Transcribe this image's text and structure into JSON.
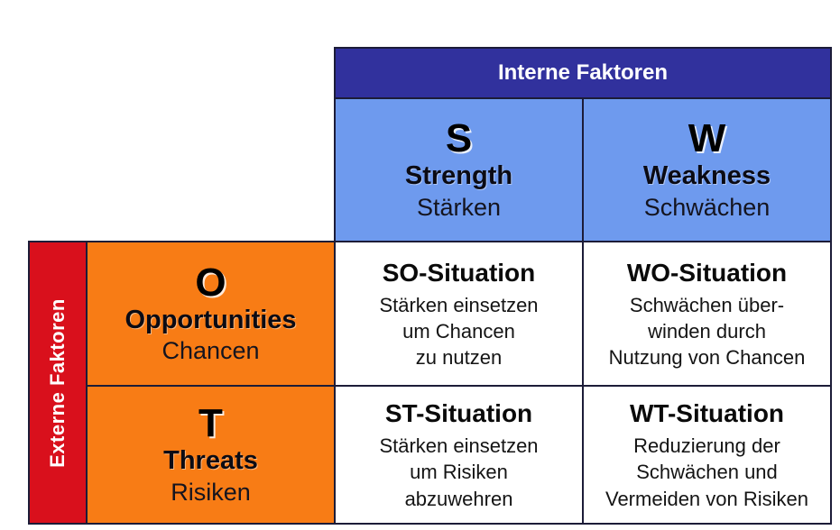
{
  "diagram": {
    "internal_header": "Interne Faktoren",
    "external_header": "Externe Faktoren",
    "columns": [
      {
        "letter": "S",
        "english": "Strength",
        "german": "Stärken"
      },
      {
        "letter": "W",
        "english": "Weakness",
        "german": "Schwächen"
      }
    ],
    "rows": [
      {
        "letter": "O",
        "english": "Opportunities",
        "german": "Chancen"
      },
      {
        "letter": "T",
        "english": "Threats",
        "german": "Risiken"
      }
    ],
    "cells": [
      {
        "title": "SO-Situation",
        "lines": [
          "Stärken einsetzen",
          "um Chancen",
          "zu nutzen"
        ]
      },
      {
        "title": "WO-Situation",
        "lines": [
          "Schwächen über-",
          "winden durch",
          "Nutzung von Chancen"
        ]
      },
      {
        "title": "ST-Situation",
        "lines": [
          "Stärken einsetzen",
          "um Risiken",
          "abzuwehren"
        ]
      },
      {
        "title": "WT-Situation",
        "lines": [
          "Reduzierung der",
          "Schwächen und",
          "Vermeiden von Risiken"
        ]
      }
    ],
    "colors": {
      "header_blue": "#31319d",
      "cell_blue": "#6e9aee",
      "orange": "#f87c15",
      "red": "#d9101c",
      "line": "#1c1c38"
    }
  }
}
